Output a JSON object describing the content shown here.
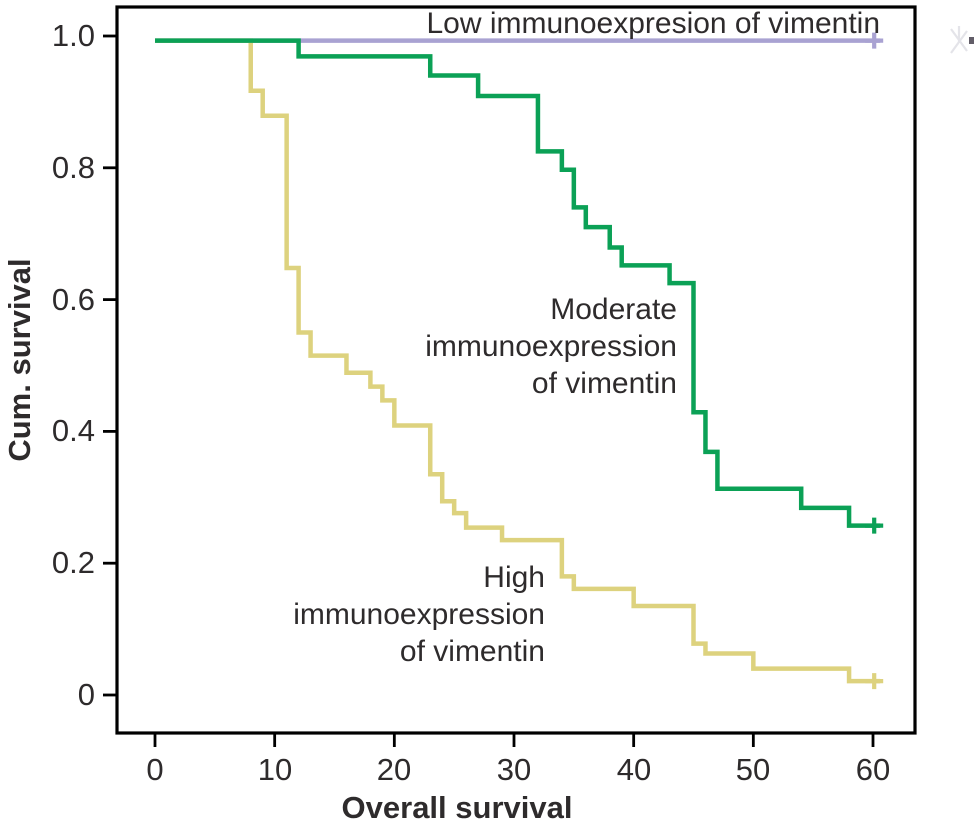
{
  "figure": {
    "background": "#ffffff",
    "text_color": "#2e2b2c",
    "axis_color": "#000000"
  },
  "chart_data": {
    "type": "line",
    "subtype": "kaplan_meier_step",
    "title": "",
    "xlabel": "Overall survival",
    "ylabel": "Cum. survival",
    "grid": false,
    "legend_position": "inline-annotations",
    "xlim": [
      -3.2,
      63.5
    ],
    "ylim": [
      -0.058,
      1.045
    ],
    "x_ticks": [
      0,
      10,
      20,
      30,
      40,
      50,
      60
    ],
    "x_tick_labels": [
      "0",
      "10",
      "20",
      "30",
      "40",
      "50",
      "60"
    ],
    "y_ticks": [
      0,
      0.2,
      0.4,
      0.6,
      0.8,
      1.0
    ],
    "y_tick_labels": [
      "0",
      "0.2",
      "0.4",
      "0.6",
      "0.8",
      "1.0"
    ],
    "series": [
      {
        "name": "Low immunoexpresion of vimentin",
        "color": "#a9a2d2",
        "step_points": [
          [
            0,
            0.993
          ]
        ],
        "end_x": 60.6,
        "censor_marks": [
          [
            60.1,
            0.993
          ]
        ]
      },
      {
        "name": "Moderate immunoexpression of vimentin",
        "color": "#0ba156",
        "step_points": [
          [
            0,
            0.993
          ],
          [
            12,
            0.969
          ],
          [
            23,
            0.94
          ],
          [
            27,
            0.909
          ],
          [
            32,
            0.825
          ],
          [
            34,
            0.797
          ],
          [
            35,
            0.74
          ],
          [
            36,
            0.71
          ],
          [
            38,
            0.679
          ],
          [
            39,
            0.652
          ],
          [
            43,
            0.625
          ],
          [
            45,
            0.429
          ],
          [
            46,
            0.369
          ],
          [
            47,
            0.313
          ],
          [
            54,
            0.284
          ],
          [
            58,
            0.257
          ]
        ],
        "end_x": 60.6,
        "censor_marks": [
          [
            60.1,
            0.257
          ]
        ]
      },
      {
        "name": "High immunoexpression of vimentin",
        "color": "#ddd27e",
        "step_points": [
          [
            0,
            0.993
          ],
          [
            8,
            0.917
          ],
          [
            9,
            0.879
          ],
          [
            11,
            0.648
          ],
          [
            12,
            0.55
          ],
          [
            13,
            0.515
          ],
          [
            16,
            0.489
          ],
          [
            18,
            0.468
          ],
          [
            19,
            0.447
          ],
          [
            20,
            0.409
          ],
          [
            23,
            0.335
          ],
          [
            24,
            0.294
          ],
          [
            25,
            0.276
          ],
          [
            26,
            0.254
          ],
          [
            29,
            0.235
          ],
          [
            34,
            0.18
          ],
          [
            35,
            0.161
          ],
          [
            40,
            0.135
          ],
          [
            45,
            0.078
          ],
          [
            46,
            0.063
          ],
          [
            50,
            0.04
          ],
          [
            58,
            0.021
          ]
        ],
        "end_x": 60.6,
        "censor_marks": [
          [
            60.1,
            0.021
          ]
        ]
      }
    ],
    "annotations": {
      "low": {
        "lines": [
          "Low immunoexpresion of vimentin"
        ]
      },
      "moderate": {
        "lines": [
          "Moderate",
          "immunoexpression",
          "of vimentin"
        ]
      },
      "high": {
        "lines": [
          "High",
          "immunoexpression",
          "of vimentin"
        ]
      }
    }
  }
}
